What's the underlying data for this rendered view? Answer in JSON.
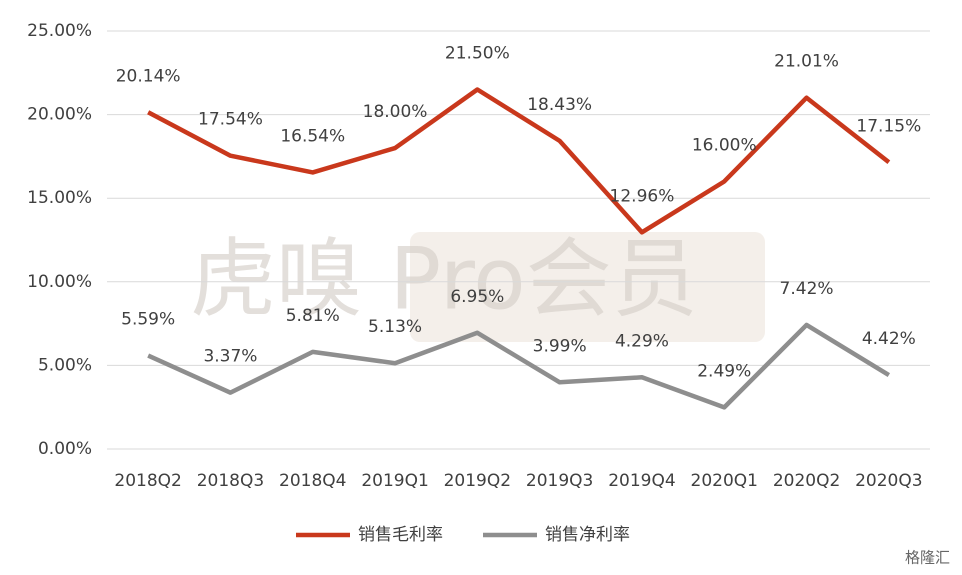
{
  "chart_data": {
    "type": "line",
    "categories": [
      "2018Q2",
      "2018Q3",
      "2018Q4",
      "2019Q1",
      "2019Q2",
      "2019Q3",
      "2019Q4",
      "2020Q1",
      "2020Q2",
      "2020Q3"
    ],
    "series": [
      {
        "name": "销售毛利率",
        "color": "#c9381c",
        "values": [
          20.14,
          17.54,
          16.54,
          18.0,
          21.5,
          18.43,
          12.96,
          16.0,
          21.01,
          17.15
        ],
        "value_labels": [
          "20.14%",
          "17.54%",
          "16.54%",
          "18.00%",
          "21.50%",
          "18.43%",
          "12.96%",
          "16.00%",
          "21.01%",
          "17.15%"
        ]
      },
      {
        "name": "销售净利率",
        "color": "#8e8e8e",
        "values": [
          5.59,
          3.37,
          5.81,
          5.13,
          6.95,
          3.99,
          4.29,
          2.49,
          7.42,
          4.42
        ],
        "value_labels": [
          "5.59%",
          "3.37%",
          "5.81%",
          "5.13%",
          "6.95%",
          "3.99%",
          "4.29%",
          "2.49%",
          "7.42%",
          "4.42%"
        ]
      }
    ],
    "ylim": [
      0,
      25
    ],
    "yticks": [
      {
        "value": 0,
        "label": "0.00%"
      },
      {
        "value": 5,
        "label": "5.00%"
      },
      {
        "value": 10,
        "label": "10.00%"
      },
      {
        "value": 15,
        "label": "15.00%"
      },
      {
        "value": 20,
        "label": "20.00%"
      },
      {
        "value": 25,
        "label": "25.00%"
      }
    ],
    "grid": true,
    "legend": "bottom",
    "watermark": "虎嗅 Pro会员",
    "logo": "格隆汇"
  }
}
